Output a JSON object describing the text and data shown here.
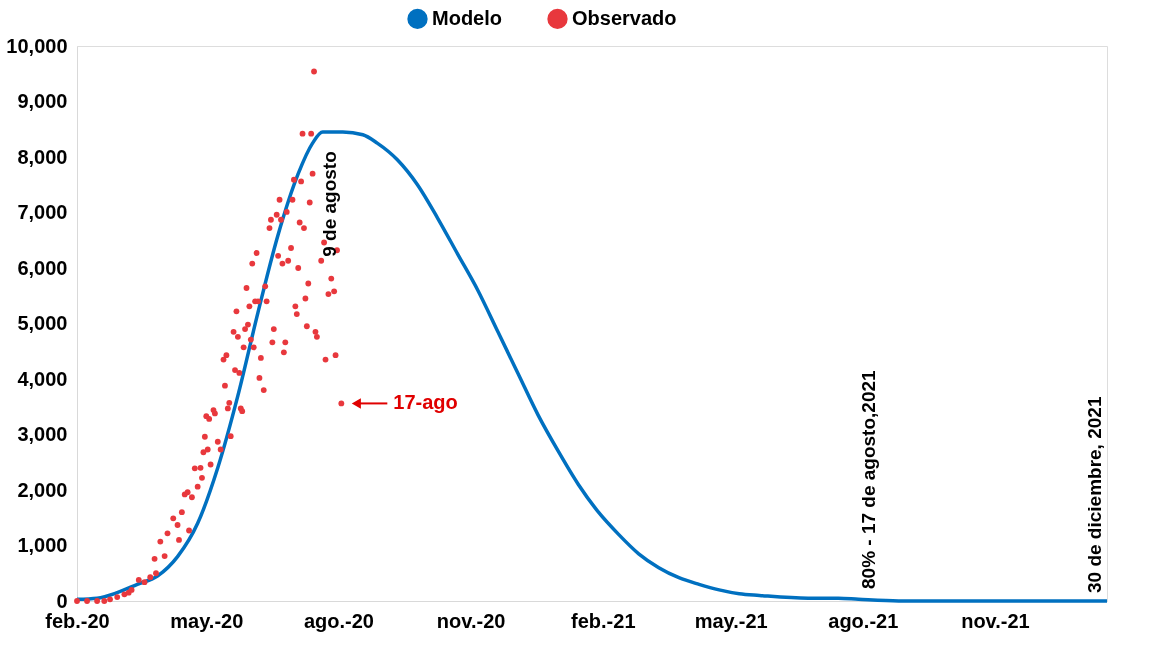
{
  "chart_data": {
    "type": "line",
    "xlim": [
      "2020-02-15",
      "2022-02-01"
    ],
    "ylim": [
      0,
      10000
    ],
    "xticks": [
      {
        "value": "2020-02-15",
        "label": "feb.-20"
      },
      {
        "value": "2020-05-15",
        "label": "may.-20"
      },
      {
        "value": "2020-08-15",
        "label": "ago.-20"
      },
      {
        "value": "2020-11-15",
        "label": "nov.-20"
      },
      {
        "value": "2021-02-15",
        "label": "feb.-21"
      },
      {
        "value": "2021-05-15",
        "label": "may.-21"
      },
      {
        "value": "2021-08-15",
        "label": "ago.-21"
      },
      {
        "value": "2021-11-15",
        "label": "nov.-21"
      }
    ],
    "yticks": [
      {
        "value": 0,
        "label": "0"
      },
      {
        "value": 1000,
        "label": "1,000"
      },
      {
        "value": 2000,
        "label": "2,000"
      },
      {
        "value": 3000,
        "label": "3,000"
      },
      {
        "value": 4000,
        "label": "4,000"
      },
      {
        "value": 5000,
        "label": "5,000"
      },
      {
        "value": 6000,
        "label": "6,000"
      },
      {
        "value": 7000,
        "label": "7,000"
      },
      {
        "value": 8000,
        "label": "8,000"
      },
      {
        "value": 9000,
        "label": "9,000"
      },
      {
        "value": 10000,
        "label": "10,000"
      }
    ],
    "grid": false,
    "legend": "top",
    "series": [
      {
        "name": "Modelo",
        "type": "line",
        "color": "#0070c0",
        "marker": "none",
        "line_style": "solid",
        "x": [
          "2020-02-15",
          "2020-02-29",
          "2020-03-14",
          "2020-03-28",
          "2020-04-11",
          "2020-04-25",
          "2020-05-09",
          "2020-05-23",
          "2020-06-06",
          "2020-06-20",
          "2020-07-04",
          "2020-07-18",
          "2020-07-28",
          "2020-08-04",
          "2020-08-18",
          "2020-09-01",
          "2020-09-11",
          "2020-09-25",
          "2020-10-09",
          "2020-10-23",
          "2020-11-06",
          "2020-11-20",
          "2020-12-04",
          "2020-12-18",
          "2021-01-01",
          "2021-01-15",
          "2021-01-29",
          "2021-02-12",
          "2021-02-26",
          "2021-03-12",
          "2021-03-26",
          "2021-04-09",
          "2021-04-23",
          "2021-05-07",
          "2021-05-21",
          "2021-06-04",
          "2021-07-08",
          "2021-07-29",
          "2021-08-12",
          "2021-09-09",
          "2022-02-01"
        ],
        "values": [
          30,
          50,
          150,
          300,
          450,
          800,
          1400,
          2400,
          3700,
          5200,
          6600,
          7700,
          8250,
          8450,
          8450,
          8400,
          8250,
          7950,
          7500,
          6900,
          6250,
          5600,
          4850,
          4100,
          3350,
          2700,
          2100,
          1600,
          1200,
          850,
          600,
          420,
          300,
          200,
          130,
          100,
          50,
          50,
          30,
          0,
          0
        ]
      },
      {
        "name": "Observado",
        "type": "scatter",
        "color": "#e8383d",
        "marker": "circle",
        "x": [
          "2020-02-15",
          "2020-02-22",
          "2020-02-29",
          "2020-03-05",
          "2020-03-09",
          "2020-03-14",
          "2020-03-19",
          "2020-03-22",
          "2020-03-24",
          "2020-03-29",
          "2020-04-02",
          "2020-04-06",
          "2020-04-10",
          "2020-04-09",
          "2020-04-16",
          "2020-04-13",
          "2020-04-18",
          "2020-04-26",
          "2020-04-22",
          "2020-04-25",
          "2020-04-28",
          "2020-05-03",
          "2020-04-30",
          "2020-05-02",
          "2020-05-05",
          "2020-05-09",
          "2020-05-07",
          "2020-05-11",
          "2020-05-12",
          "2020-05-18",
          "2020-05-13",
          "2020-05-16",
          "2020-05-25",
          "2020-05-14",
          "2020-05-23",
          "2020-06-01",
          "2020-05-17",
          "2020-05-15",
          "2020-05-20",
          "2020-05-21",
          "2020-05-28",
          "2020-05-31",
          "2020-05-30",
          "2020-06-08",
          "2020-06-09",
          "2020-06-04",
          "2020-06-07",
          "2020-05-29",
          "2020-05-27",
          "2020-06-03",
          "2020-06-06",
          "2020-06-11",
          "2020-06-13",
          "2020-06-15",
          "2020-06-10",
          "2020-06-17",
          "2020-06-22",
          "2020-06-21",
          "2020-06-24",
          "2020-06-05",
          "2020-06-14",
          "2020-06-12",
          "2020-06-18",
          "2020-06-20",
          "2020-06-26",
          "2020-06-25",
          "2020-06-19",
          "2020-06-16",
          "2020-07-04",
          "2020-07-07",
          "2020-07-11",
          "2020-07-13",
          "2020-07-18",
          "2020-06-28",
          "2020-06-29",
          "2020-07-03",
          "2020-07-06",
          "2020-07-05",
          "2020-07-14",
          "2020-07-10",
          "2020-07-19",
          "2020-07-22",
          "2020-07-15",
          "2020-07-20",
          "2020-07-26",
          "2020-07-28",
          "2020-07-21",
          "2020-07-27",
          "2020-07-29",
          "2020-07-25",
          "2020-07-23",
          "2020-07-16",
          "2020-07-17",
          "2020-07-01",
          "2020-06-30",
          "2020-07-09",
          "2020-07-08",
          "2020-07-24",
          "2020-07-30",
          "2020-07-31",
          "2020-08-06",
          "2020-08-13",
          "2020-08-08",
          "2020-08-12",
          "2020-08-10",
          "2020-08-14",
          "2020-08-05",
          "2020-08-03",
          "2020-08-17"
        ],
        "values": [
          0,
          0,
          0,
          0,
          30,
          70,
          120,
          150,
          200,
          380,
          340,
          430,
          500,
          760,
          810,
          1070,
          1220,
          1100,
          1490,
          1370,
          1600,
          1270,
          1920,
          1960,
          1870,
          2060,
          2390,
          2400,
          2220,
          2460,
          2680,
          2730,
          2730,
          2960,
          2870,
          2970,
          3280,
          3330,
          3440,
          3380,
          3880,
          3570,
          3470,
          3470,
          3420,
          4160,
          4110,
          4430,
          4350,
          4850,
          4760,
          4900,
          4980,
          4710,
          4570,
          4570,
          4380,
          4020,
          3800,
          5220,
          5310,
          5640,
          5400,
          5400,
          5400,
          5670,
          6270,
          6080,
          6220,
          6080,
          6130,
          6360,
          6000,
          6720,
          6870,
          6960,
          6870,
          7230,
          7230,
          7010,
          6820,
          6720,
          7590,
          7560,
          7180,
          7700,
          8420,
          8420,
          9540,
          5720,
          5450,
          5310,
          5170,
          4900,
          4660,
          4660,
          4480,
          4950,
          4850,
          4760,
          4350,
          4430,
          5530,
          5580,
          5810,
          6320,
          6460,
          6130,
          3560
        ]
      }
    ],
    "annotations": [
      "9 de agosto",
      {
        "text": "17-ago",
        "x": "2020-08-17",
        "y": 3560
      },
      "80% - 17 de agosto,2021",
      "30 de diciembre, 2021"
    ]
  }
}
